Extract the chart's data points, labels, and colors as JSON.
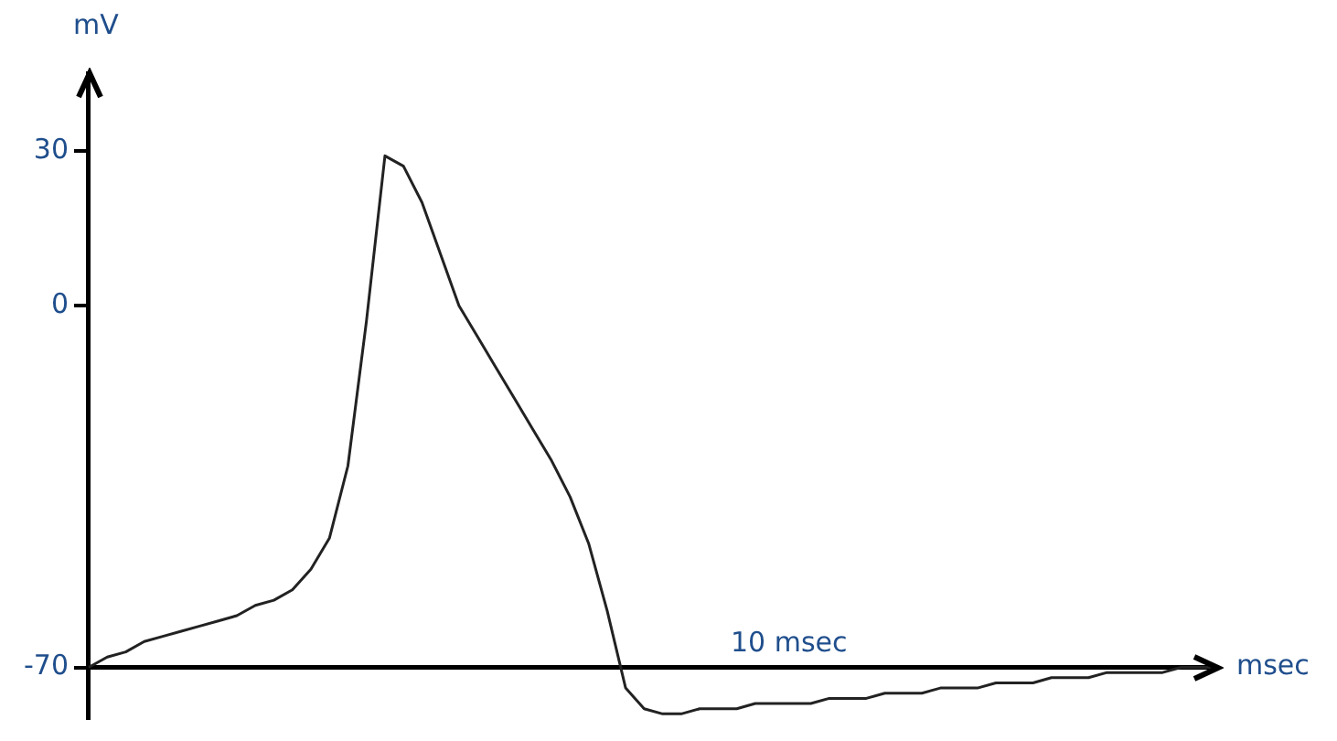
{
  "chart_data": {
    "type": "line",
    "xlabel": "msec",
    "ylabel": "mV",
    "categories": [
      null,
      null,
      null,
      null,
      null,
      null,
      null,
      null,
      null,
      null,
      null,
      null,
      null,
      null,
      null,
      null,
      null,
      null,
      null,
      null,
      null,
      null,
      null,
      null,
      null,
      null,
      null,
      null,
      null,
      null,
      null,
      null,
      null,
      null,
      null,
      null,
      null,
      null,
      null,
      null,
      null,
      null,
      null,
      null,
      null,
      null,
      null,
      null,
      null,
      null,
      null,
      null,
      null,
      null,
      null,
      null,
      null,
      null,
      null,
      null,
      null,
      null
    ],
    "series": [
      {
        "color": "#222222",
        "values": [
          -70,
          -68,
          -67,
          -65,
          -64,
          -63,
          -62,
          -61,
          -60,
          -58,
          -57,
          -55,
          -51,
          -45,
          -31,
          -3,
          29,
          27,
          20,
          10,
          0,
          -6,
          -12,
          -18,
          -24,
          -30,
          -37,
          -46,
          -59,
          -74,
          -78,
          -79,
          -79,
          -78,
          -78,
          -78,
          -77,
          -77,
          -77,
          -77,
          -76,
          -76,
          -76,
          -75,
          -75,
          -75,
          -74,
          -74,
          -74,
          -73,
          -73,
          -73,
          -72,
          -72,
          -72,
          -71,
          -71,
          -71,
          -71,
          -70,
          -70,
          -70
        ]
      }
    ],
    "ylim": [
      -80,
      45
    ],
    "yticks": [
      30,
      0,
      -70
    ],
    "annotations": [
      "10 msec"
    ],
    "tick_labels": "y",
    "legend": false,
    "marker": "none",
    "line_style": "solid"
  }
}
